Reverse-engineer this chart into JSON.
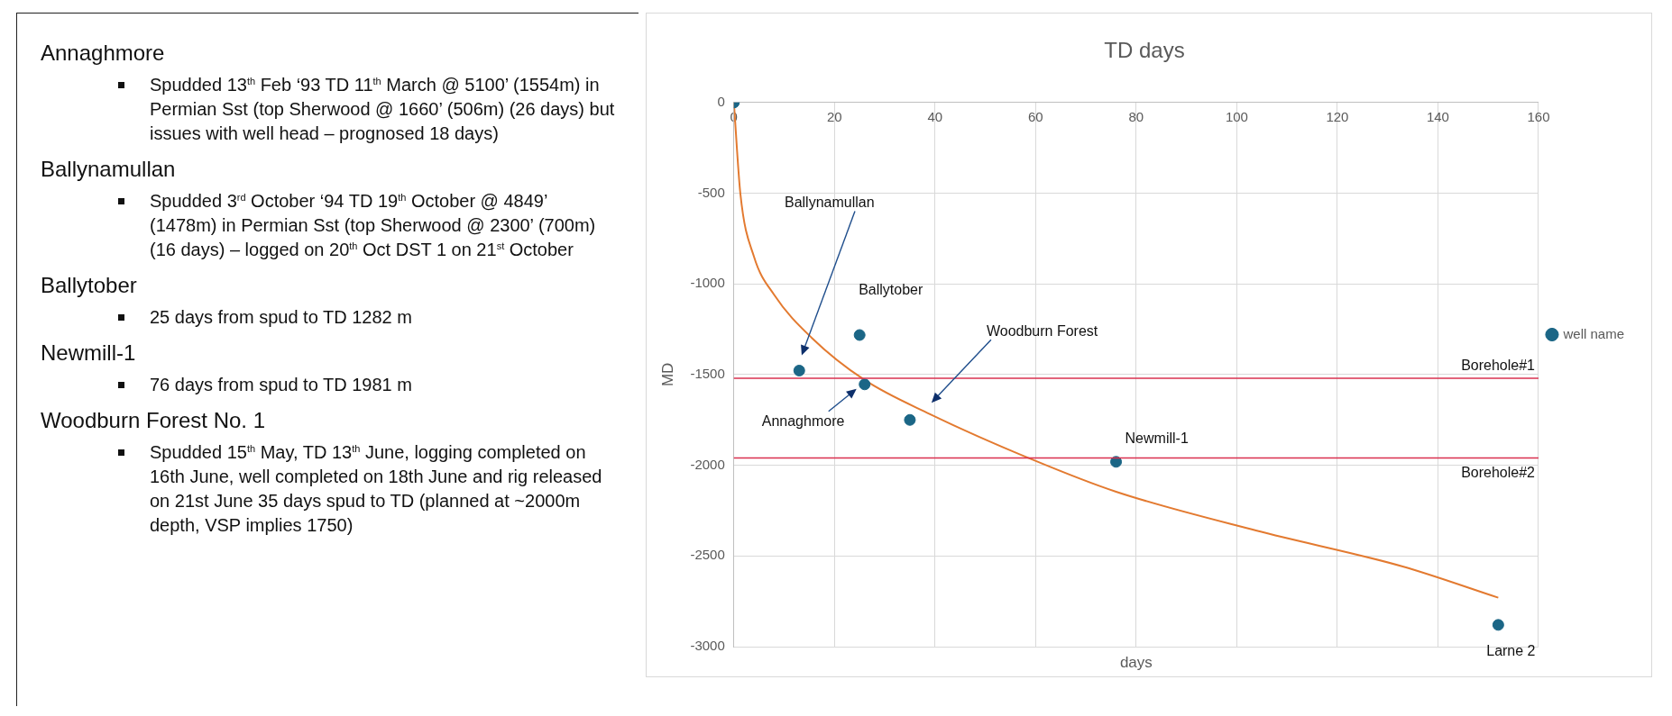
{
  "chart_data": [
    {
      "type": "other",
      "annotations": [
        "Annaghmore",
        "Spudded 13$^{th}$ Feb ‘93 TD 11$^{th}$ March @ 5100’ (1554m) in Permian Sst (top Sherwood @ 1660’ (506m) (26 days) but issues with well head – prognosed 18 days)",
        "Ballynamullan",
        "Spudded 3$^{rd}$ October ‘94 TD 19$^{th}$ October @ 4849’ (1478m) in Permian Sst (top Sherwood @ 2300’ (700m) (16 days) – logged on 20$^{th}$ Oct DST 1 on 21$^{st}$ October",
        "Ballytober",
        "25 days from spud to TD 1282 m",
        "Newmill-1",
        "76 days from spud to TD 1981 m",
        "Woodburn Forest No. 1",
        "Spudded 15$^{th}$ May, TD 13$^{th}$ June, logging completed on 16th June, well completed on 18th June and rig released on 21st June 35 days spud to TD (planned at ~2000m depth, VSP implies 1750)"
      ]
    },
    {
      "type": "scatter",
      "title": "TD days",
      "xlabel": "days",
      "ylabel": "MD",
      "xlim": [
        0,
        160
      ],
      "xticks": [
        0,
        20,
        40,
        60,
        80,
        100,
        120,
        140,
        160
      ],
      "ylim": [
        -3000,
        0
      ],
      "yticks": [
        -3000,
        -2500,
        -2000,
        -1500,
        -1000,
        -500,
        0
      ],
      "grid": true,
      "legend": "right",
      "marker": "circle",
      "series": [
        {
          "name": "well name",
          "color": "#1b6686",
          "x": [
            0,
            13,
            25,
            26,
            35,
            76,
            152
          ],
          "values": [
            0,
            -1478,
            -1282,
            -1554,
            -1750,
            -1981,
            -2880
          ]
        },
        {
          "type": "line",
          "color": "#e37a30",
          "marker": "none",
          "x": [
            0,
            1.3,
            4,
            8,
            15.5,
            26,
            39,
            59.3,
            76,
            104,
            133,
            152
          ],
          "values": [
            0,
            -505,
            -850,
            -1060,
            -1298,
            -1530,
            -1718,
            -1968,
            -2146,
            -2361,
            -2558,
            -2730
          ]
        }
      ],
      "ref_lines": [
        {
          "axis": "y",
          "value": -1520,
          "label": "Borehole#1",
          "color": "#d9304f"
        },
        {
          "axis": "y",
          "value": -1960,
          "label": "Borehole#2",
          "color": "#d9304f"
        }
      ],
      "annotations": [
        "Ballynamullan",
        {
          "text": "Ballytober",
          "x": 25,
          "y": -1282
        },
        "Woodburn Forest",
        {
          "text": "Annaghmore",
          "x": 26,
          "y": -1554
        },
        {
          "text": "Newmill-1",
          "x": 76,
          "y": -1981
        },
        {
          "text": "Larne 2",
          "x": 152,
          "y": -2880
        }
      ]
    }
  ]
}
